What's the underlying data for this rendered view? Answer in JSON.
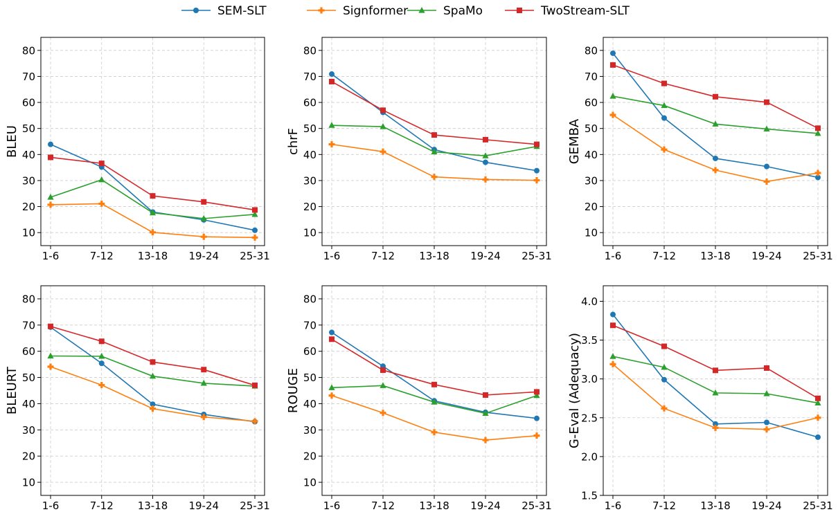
{
  "legend": {
    "placement": "top-center",
    "items": [
      {
        "label": "SEM-SLT",
        "color": "#1f77b4",
        "marker": "circle"
      },
      {
        "label": "Signformer",
        "color": "#ff7f0e",
        "marker": "plus-filled"
      },
      {
        "label": "SpaMo",
        "color": "#2ca02c",
        "marker": "triangle"
      },
      {
        "label": "TwoStream-SLT",
        "color": "#d62728",
        "marker": "square"
      }
    ]
  },
  "chart_data": [
    {
      "type": "line",
      "ylabel": "BLEU",
      "ylim": [
        5,
        85
      ],
      "yticks": [
        10,
        20,
        30,
        40,
        50,
        60,
        70,
        80
      ],
      "categories": [
        "1-6",
        "7-12",
        "13-18",
        "19-24",
        "25-31"
      ],
      "grid": true,
      "series": [
        {
          "name": "SEM-SLT",
          "values": [
            43.9,
            35.2,
            17.9,
            14.9,
            10.9
          ]
        },
        {
          "name": "Signformer",
          "values": [
            20.7,
            21.1,
            10.1,
            8.4,
            8.1
          ]
        },
        {
          "name": "SpaMo",
          "values": [
            23.6,
            30.3,
            17.6,
            15.4,
            17.0
          ]
        },
        {
          "name": "TwoStream-SLT",
          "values": [
            38.9,
            36.6,
            24.1,
            21.8,
            18.7
          ]
        }
      ]
    },
    {
      "type": "line",
      "ylabel": "chrF",
      "ylim": [
        5,
        85
      ],
      "yticks": [
        10,
        20,
        30,
        40,
        50,
        60,
        70,
        80
      ],
      "categories": [
        "1-6",
        "7-12",
        "13-18",
        "19-24",
        "25-31"
      ],
      "grid": true,
      "series": [
        {
          "name": "SEM-SLT",
          "values": [
            70.9,
            56.2,
            41.9,
            37.0,
            33.8
          ]
        },
        {
          "name": "Signformer",
          "values": [
            43.9,
            41.1,
            31.4,
            30.4,
            30.1
          ]
        },
        {
          "name": "SpaMo",
          "values": [
            51.2,
            50.7,
            41.0,
            39.5,
            43.1
          ]
        },
        {
          "name": "TwoStream-SLT",
          "values": [
            68.0,
            57.0,
            47.5,
            45.7,
            43.9
          ]
        }
      ]
    },
    {
      "type": "line",
      "ylabel": "GEMBA",
      "ylim": [
        5,
        85
      ],
      "yticks": [
        10,
        20,
        30,
        40,
        50,
        60,
        70,
        80
      ],
      "categories": [
        "1-6",
        "7-12",
        "13-18",
        "19-24",
        "25-31"
      ],
      "grid": true,
      "series": [
        {
          "name": "SEM-SLT",
          "values": [
            78.9,
            54.0,
            38.5,
            35.4,
            31.2
          ]
        },
        {
          "name": "Signformer",
          "values": [
            55.2,
            41.9,
            34.0,
            29.6,
            32.9
          ]
        },
        {
          "name": "SpaMo",
          "values": [
            62.4,
            58.8,
            51.7,
            49.8,
            48.1
          ]
        },
        {
          "name": "TwoStream-SLT",
          "values": [
            74.4,
            67.3,
            62.2,
            60.1,
            50.1
          ]
        }
      ]
    },
    {
      "type": "line",
      "ylabel": "BLEURT",
      "ylim": [
        5,
        85
      ],
      "yticks": [
        10,
        20,
        30,
        40,
        50,
        60,
        70,
        80
      ],
      "categories": [
        "1-6",
        "7-12",
        "13-18",
        "19-24",
        "25-31"
      ],
      "grid": true,
      "series": [
        {
          "name": "SEM-SLT",
          "values": [
            69.2,
            55.4,
            39.8,
            35.9,
            33.1
          ]
        },
        {
          "name": "Signformer",
          "values": [
            54.1,
            47.1,
            38.1,
            34.9,
            33.3
          ]
        },
        {
          "name": "SpaMo",
          "values": [
            58.2,
            58.1,
            50.5,
            47.8,
            46.7
          ]
        },
        {
          "name": "TwoStream-SLT",
          "values": [
            69.5,
            63.8,
            55.9,
            53.0,
            47.0
          ]
        }
      ]
    },
    {
      "type": "line",
      "ylabel": "ROUGE",
      "ylim": [
        5,
        85
      ],
      "yticks": [
        10,
        20,
        30,
        40,
        50,
        60,
        70,
        80
      ],
      "categories": [
        "1-6",
        "7-12",
        "13-18",
        "19-24",
        "25-31"
      ],
      "grid": true,
      "series": [
        {
          "name": "SEM-SLT",
          "values": [
            67.2,
            54.3,
            41.1,
            36.7,
            34.4
          ]
        },
        {
          "name": "Signformer",
          "values": [
            43.1,
            36.5,
            29.1,
            26.1,
            27.8
          ]
        },
        {
          "name": "SpaMo",
          "values": [
            46.1,
            46.9,
            40.6,
            36.3,
            43.1
          ]
        },
        {
          "name": "TwoStream-SLT",
          "values": [
            64.6,
            52.8,
            47.3,
            43.3,
            44.5
          ]
        }
      ]
    },
    {
      "type": "line",
      "ylabel": "G-Eval (Adequacy)",
      "ylim": [
        1.5,
        4.2
      ],
      "yticks": [
        1.5,
        2.0,
        2.5,
        3.0,
        3.5,
        4.0
      ],
      "tickFormat": 1,
      "categories": [
        "1-6",
        "7-12",
        "13-18",
        "19-24",
        "25-31"
      ],
      "grid": true,
      "series": [
        {
          "name": "SEM-SLT",
          "values": [
            3.83,
            2.99,
            2.42,
            2.44,
            2.25
          ]
        },
        {
          "name": "Signformer",
          "values": [
            3.19,
            2.62,
            2.37,
            2.35,
            2.5
          ]
        },
        {
          "name": "SpaMo",
          "values": [
            3.29,
            3.15,
            2.82,
            2.81,
            2.69
          ]
        },
        {
          "name": "TwoStream-SLT",
          "values": [
            3.69,
            3.42,
            3.11,
            3.14,
            2.75
          ]
        }
      ]
    }
  ]
}
